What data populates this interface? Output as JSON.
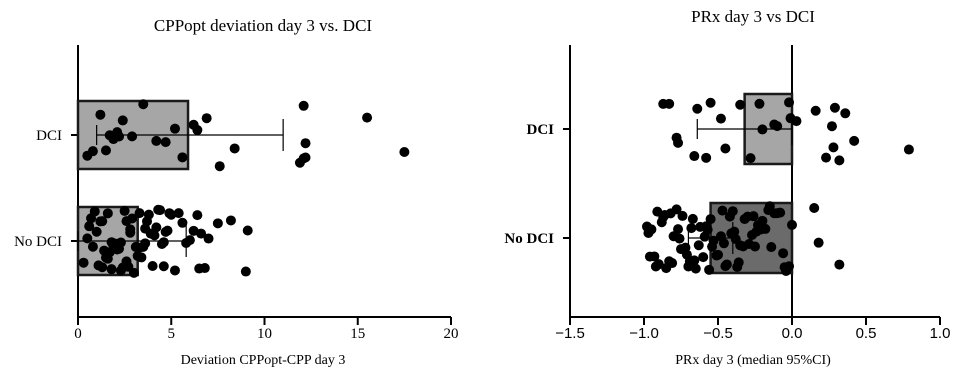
{
  "chart_data": [
    {
      "type": "bar",
      "orientation": "horizontal",
      "title": "CPPopt deviation day 3 vs. DCI",
      "xlabel": "Deviation CPPopt-CPP day 3",
      "ylabel": "",
      "xlim": [
        0,
        20
      ],
      "xticks": [
        "0",
        "5",
        "10",
        "15",
        "20"
      ],
      "categories": [
        "DCI",
        "No DCI"
      ],
      "values": [
        5.9,
        3.2
      ],
      "ci": [
        [
          1.0,
          11.0
        ],
        [
          0.0,
          5.8
        ]
      ],
      "bar_colors": [
        "#a6a6a6",
        "#a6a6a6"
      ],
      "series": [
        {
          "name": "DCI",
          "points": [
            1.2,
            1.5,
            1.9,
            2.1,
            2.4,
            0.5,
            0.8,
            1.7,
            2.2,
            2.9,
            3.5,
            4.2,
            4.7,
            5.2,
            5.6,
            6.2,
            6.4,
            6.9,
            7.6,
            8.4,
            12.1,
            12.2,
            12.1,
            12.2,
            11.9,
            15.5,
            17.5
          ]
        },
        {
          "name": "No DCI",
          "points": [
            0.3,
            0.5,
            0.6,
            0.8,
            0.9,
            1.0,
            1.1,
            1.2,
            1.3,
            1.4,
            1.5,
            1.6,
            1.7,
            1.8,
            1.9,
            2.0,
            2.1,
            2.2,
            2.3,
            2.4,
            2.5,
            2.6,
            2.7,
            2.8,
            2.9,
            3.0,
            3.1,
            3.2,
            3.3,
            3.4,
            3.5,
            3.6,
            3.7,
            3.8,
            3.9,
            4.0,
            4.1,
            4.2,
            4.3,
            4.4,
            4.5,
            4.6,
            4.7,
            4.8,
            4.9,
            5.0,
            5.2,
            5.4,
            5.6,
            5.8,
            6.0,
            6.2,
            6.4,
            6.6,
            6.8,
            7.0,
            7.5,
            8.2,
            9.0,
            9.1,
            1.3,
            2.3,
            3.3,
            1.8,
            2.8,
            0.7,
            1.6,
            2.6,
            3.6,
            4.6,
            6.5
          ]
        }
      ]
    },
    {
      "type": "bar",
      "orientation": "horizontal",
      "title": "PRx day 3 vs DCI",
      "xlabel": "PRx day 3 (median 95%CI)",
      "ylabel": "",
      "xlim": [
        -1.5,
        1.0
      ],
      "xticks": [
        "-1.5",
        "-1.0",
        "-0.5",
        "0.0",
        "0.5",
        "1.0"
      ],
      "categories": [
        "DCI",
        "No DCI"
      ],
      "values": [
        -0.32,
        -0.55
      ],
      "ci": [
        [
          -0.64,
          0.0
        ],
        [
          -0.7,
          -0.4
        ]
      ],
      "bar_colors": [
        "#a6a6a6",
        "#6b6b6b"
      ],
      "series": [
        {
          "name": "DCI",
          "points": [
            -0.83,
            -0.64,
            -0.87,
            -0.77,
            -0.66,
            -0.58,
            -0.48,
            -0.45,
            -0.28,
            -0.22,
            -0.2,
            -0.12,
            -0.02,
            -0.01,
            0.03,
            0.16,
            0.23,
            0.28,
            0.32,
            0.36,
            0.42,
            0.27,
            0.29,
            0.79,
            -0.78,
            -0.55,
            -0.35,
            -0.1
          ]
        },
        {
          "name": "No DCI",
          "points": [
            -0.98,
            -0.96,
            -0.95,
            -0.93,
            -0.91,
            -0.9,
            -0.88,
            -0.86,
            -0.85,
            -0.83,
            -0.81,
            -0.8,
            -0.78,
            -0.77,
            -0.75,
            -0.74,
            -0.72,
            -0.71,
            -0.69,
            -0.68,
            -0.66,
            -0.65,
            -0.63,
            -0.62,
            -0.6,
            -0.59,
            -0.57,
            -0.56,
            -0.54,
            -0.53,
            -0.51,
            -0.5,
            -0.48,
            -0.47,
            -0.45,
            -0.44,
            -0.42,
            -0.41,
            -0.39,
            -0.38,
            -0.36,
            -0.35,
            -0.33,
            -0.32,
            -0.3,
            -0.29,
            -0.27,
            -0.26,
            -0.24,
            -0.23,
            -0.21,
            -0.2,
            -0.18,
            -0.16,
            -0.14,
            -0.12,
            -0.1,
            -0.08,
            -0.06,
            -0.04,
            -0.02,
            0.0,
            0.15,
            0.18,
            0.32,
            -0.97,
            -0.87,
            -0.76,
            -0.67,
            -0.58,
            -0.46,
            -0.37,
            -0.25,
            -0.15,
            -0.05,
            -0.92,
            -0.82,
            -0.7,
            -0.55,
            -0.4
          ]
        }
      ]
    }
  ]
}
